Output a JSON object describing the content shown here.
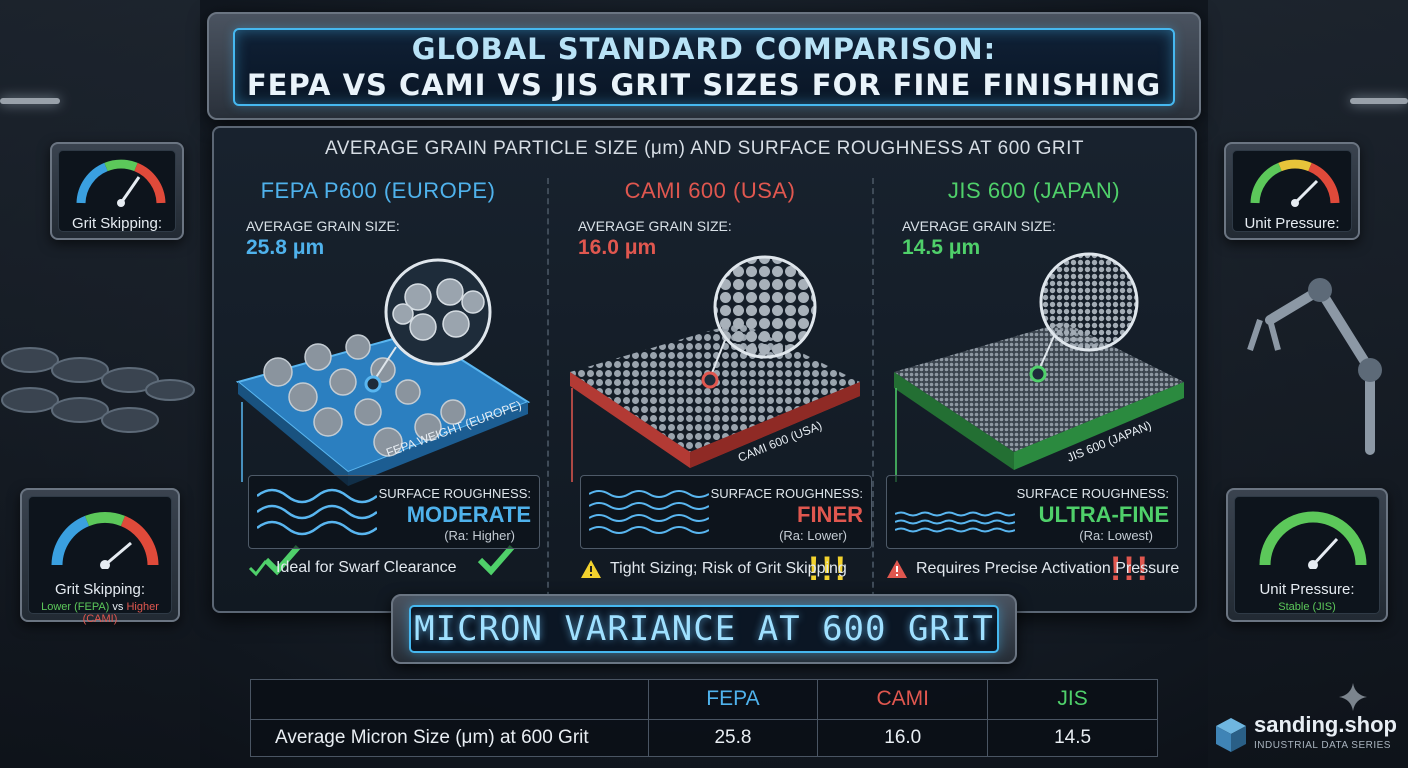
{
  "title": {
    "line1": "GLOBAL STANDARD COMPARISON:",
    "line2": "FEPA VS CAMI VS JIS GRIT SIZES FOR FINE FINISHING"
  },
  "panel": {
    "subtitle": "AVERAGE GRAIN PARTICLE SIZE (μm) AND SURFACE ROUGHNESS AT 600 GRIT"
  },
  "columns": [
    {
      "title": "FEPA P600 (EUROPE)",
      "grain_label": "AVERAGE GRAIN SIZE:",
      "grain_value": "25.8 μm",
      "plate_label": "FEPA WEIGHT (EUROPE)",
      "rough_label": "SURFACE ROUGHNESS:",
      "rough_value": "MODERATE",
      "rough_ra": "(Ra: Higher)",
      "note": "Ideal for Swarf Clearance",
      "color": "#4fb2ec"
    },
    {
      "title": "CAMI 600 (USA)",
      "grain_label": "AVERAGE GRAIN SIZE:",
      "grain_value": "16.0 μm",
      "plate_label": "CAMI 600 (USA)",
      "rough_label": "SURFACE ROUGHNESS:",
      "rough_value": "FINER",
      "rough_ra": "(Ra: Lower)",
      "note": "Tight Sizing; Risk of Grit Skipping",
      "marks": "!!!",
      "color": "#e0574f"
    },
    {
      "title": "JIS 600 (JAPAN)",
      "grain_label": "AVERAGE GRAIN SIZE:",
      "grain_value": "14.5 μm",
      "plate_label": "JIS 600 (JAPAN)",
      "rough_label": "SURFACE ROUGHNESS:",
      "rough_value": "ULTRA-FINE",
      "rough_ra": "(Ra: Lowest)",
      "note": "Requires Precise Activation Pressure",
      "marks": "!!!",
      "color": "#4fd06a"
    }
  ],
  "gauges": {
    "top_left": {
      "label": "Grit Skipping:"
    },
    "top_right": {
      "label": "Unit Pressure:"
    },
    "bottom_left": {
      "label": "Grit Skipping:",
      "sub_a": "Lower (FEPA)",
      "sub_vs": "vs",
      "sub_b": "Higher (CAMI)"
    },
    "bottom_right": {
      "label": "Unit Pressure:",
      "sub": "Stable (JIS)"
    }
  },
  "banner": {
    "text": "MICRON VARIANCE AT 600 GRIT"
  },
  "table": {
    "headers": [
      "",
      "FEPA",
      "CAMI",
      "JIS"
    ],
    "row_label": "Average Micron Size (μm) at 600 Grit",
    "values": [
      "25.8",
      "16.0",
      "14.5"
    ]
  },
  "brand": {
    "name": "sanding.shop",
    "sub": "INDUSTRIAL DATA SERIES"
  },
  "colors": {
    "fepa": "#4fb2ec",
    "cami": "#e0574f",
    "jis": "#4fd06a",
    "accent": "#46b8f0",
    "warning": "#f2d22e"
  }
}
